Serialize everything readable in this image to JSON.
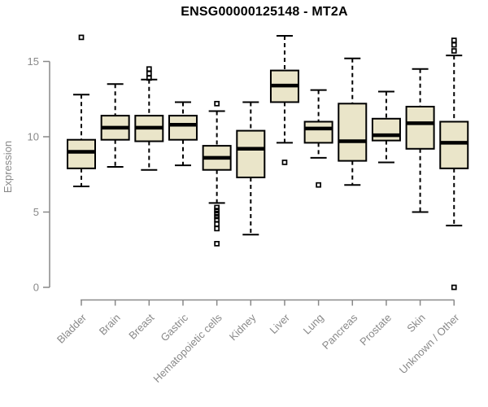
{
  "chart_data": {
    "type": "boxplot",
    "title": "ENSG00000125148 - MT2A",
    "ylabel": "Expression",
    "xlabel": "",
    "y_ticks": [
      0,
      5,
      10,
      15
    ],
    "ylim": [
      0,
      17
    ],
    "grid": false,
    "legend": false,
    "x_label_rotation_deg": -45,
    "categories": [
      "Bladder",
      "Brain",
      "Breast",
      "Gastric",
      "Hematopoietic cells",
      "Kidney",
      "Liver",
      "Lung",
      "Pancreas",
      "Prostate",
      "Skin",
      "Unknown / Other"
    ],
    "boxes": [
      {
        "category": "Bladder",
        "whisker_low": 6.7,
        "q1": 7.9,
        "median": 9.0,
        "q3": 9.8,
        "whisker_high": 12.8,
        "outliers": [
          16.6
        ]
      },
      {
        "category": "Brain",
        "whisker_low": 8.0,
        "q1": 9.8,
        "median": 10.6,
        "q3": 11.4,
        "whisker_high": 13.5,
        "outliers": []
      },
      {
        "category": "Breast",
        "whisker_low": 7.8,
        "q1": 9.7,
        "median": 10.6,
        "q3": 11.4,
        "whisker_high": 13.8,
        "outliers": [
          14.5,
          14.2,
          13.9
        ]
      },
      {
        "category": "Gastric",
        "whisker_low": 8.1,
        "q1": 9.8,
        "median": 10.8,
        "q3": 11.4,
        "whisker_high": 12.3,
        "outliers": []
      },
      {
        "category": "Hematopoietic cells",
        "whisker_low": 5.6,
        "q1": 7.8,
        "median": 8.6,
        "q3": 9.4,
        "whisker_high": 11.7,
        "outliers": [
          12.2,
          5.3,
          5.1,
          4.9,
          4.7,
          4.5,
          4.2,
          3.9,
          2.9
        ]
      },
      {
        "category": "Kidney",
        "whisker_low": 3.5,
        "q1": 7.3,
        "median": 9.2,
        "q3": 10.4,
        "whisker_high": 12.3,
        "outliers": []
      },
      {
        "category": "Liver",
        "whisker_low": 9.6,
        "q1": 12.3,
        "median": 13.4,
        "q3": 14.4,
        "whisker_high": 16.7,
        "outliers": [
          8.3
        ]
      },
      {
        "category": "Lung",
        "whisker_low": 8.6,
        "q1": 9.6,
        "median": 10.55,
        "q3": 11.0,
        "whisker_high": 13.1,
        "outliers": [
          6.8
        ]
      },
      {
        "category": "Pancreas",
        "whisker_low": 6.8,
        "q1": 8.4,
        "median": 9.7,
        "q3": 12.2,
        "whisker_high": 15.2,
        "outliers": []
      },
      {
        "category": "Prostate",
        "whisker_low": 8.3,
        "q1": 9.75,
        "median": 10.1,
        "q3": 11.2,
        "whisker_high": 13.0,
        "outliers": []
      },
      {
        "category": "Skin",
        "whisker_low": 5.0,
        "q1": 9.2,
        "median": 10.9,
        "q3": 12.0,
        "whisker_high": 14.5,
        "outliers": []
      },
      {
        "category": "Unknown / Other",
        "whisker_low": 4.1,
        "q1": 7.9,
        "median": 9.6,
        "q3": 11.0,
        "whisker_high": 15.4,
        "outliers": [
          16.4,
          16.1,
          15.7,
          0.0
        ]
      }
    ]
  },
  "colors": {
    "background": "#ffffff",
    "box_fill": "#EAE5C9",
    "box_stroke": "#000000",
    "median": "#000000",
    "whisker": "#000000",
    "outlier": "#000000",
    "axis": "#898989",
    "title": "#000000"
  }
}
